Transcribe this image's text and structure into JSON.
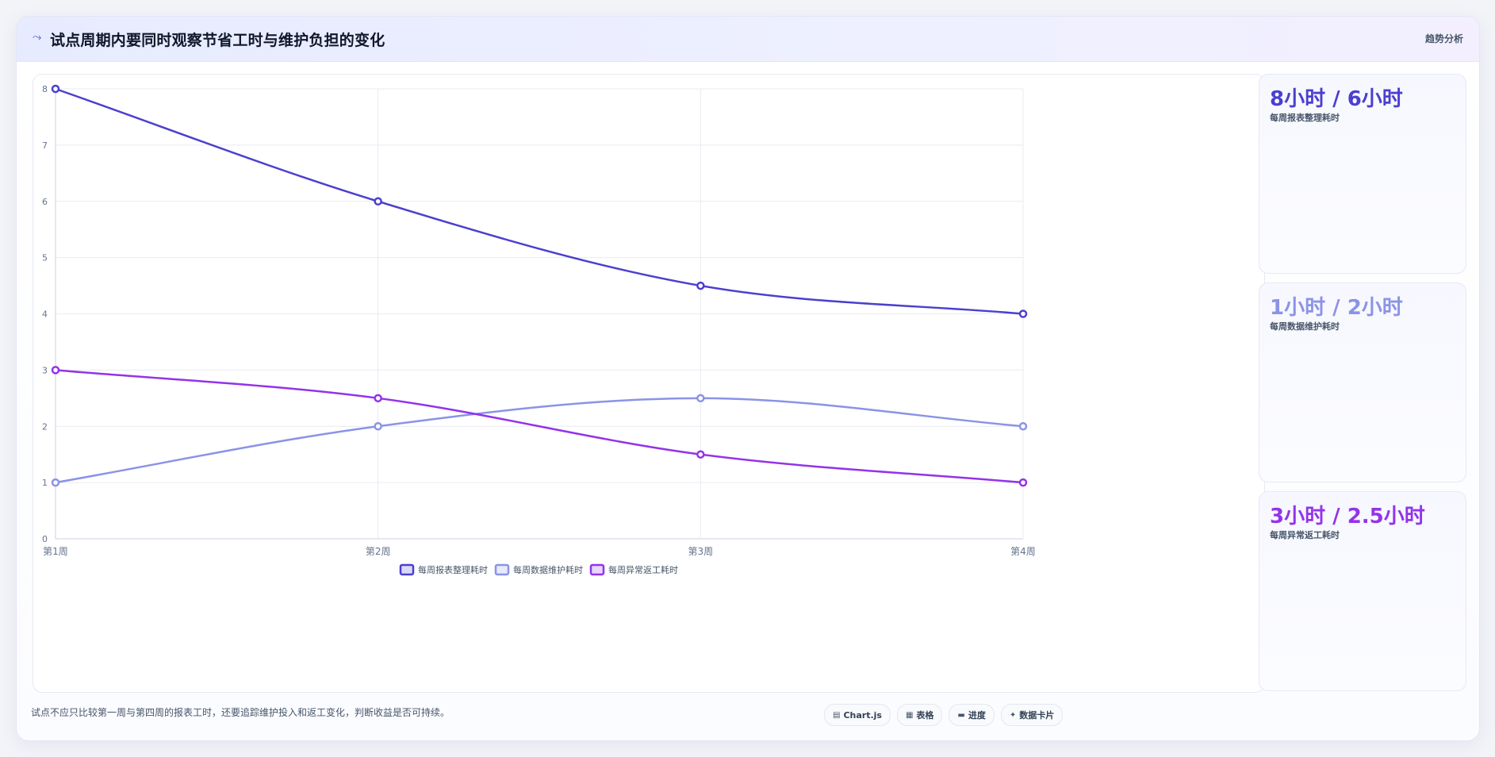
{
  "header": {
    "title": "试点周期内要同时观察节省工时与维护负担的变化",
    "badge": "趋势分析"
  },
  "colors": {
    "series1": "#4b3fcf",
    "series2": "#8b93e6",
    "series3": "#9333ea"
  },
  "chart_data": {
    "type": "line",
    "categories": [
      "第1周",
      "第2周",
      "第3周",
      "第4周"
    ],
    "series": [
      {
        "name": "每周报表整理耗时",
        "values": [
          8,
          6,
          4.5,
          4
        ]
      },
      {
        "name": "每周数据维护耗时",
        "values": [
          1,
          2,
          2.5,
          2
        ]
      },
      {
        "name": "每周异常返工耗时",
        "values": [
          3,
          2.5,
          1.5,
          1
        ]
      }
    ],
    "ylim": [
      0,
      8
    ],
    "yticks": [
      "0",
      "1",
      "2",
      "3",
      "4",
      "5",
      "6",
      "7",
      "8"
    ],
    "grid": true,
    "legend_position": "bottom",
    "title": "",
    "xlabel": "",
    "ylabel": ""
  },
  "stats": [
    {
      "value": "8小时 / 6小时",
      "label": "每周报表整理耗时"
    },
    {
      "value": "1小时 / 2小时",
      "label": "每周数据维护耗时"
    },
    {
      "value": "3小时 / 2.5小时",
      "label": "每周异常返工耗时"
    }
  ],
  "footer": {
    "note": "试点不应只比较第一周与第四周的报表工时，还要追踪维护投入和返工变化，判断收益是否可持续。",
    "chips": [
      {
        "icon": "chart-icon",
        "label": "Chart.js"
      },
      {
        "icon": "table-icon",
        "label": "表格"
      },
      {
        "icon": "progress-icon",
        "label": "进度"
      },
      {
        "icon": "card-icon",
        "label": "数据卡片"
      }
    ]
  }
}
